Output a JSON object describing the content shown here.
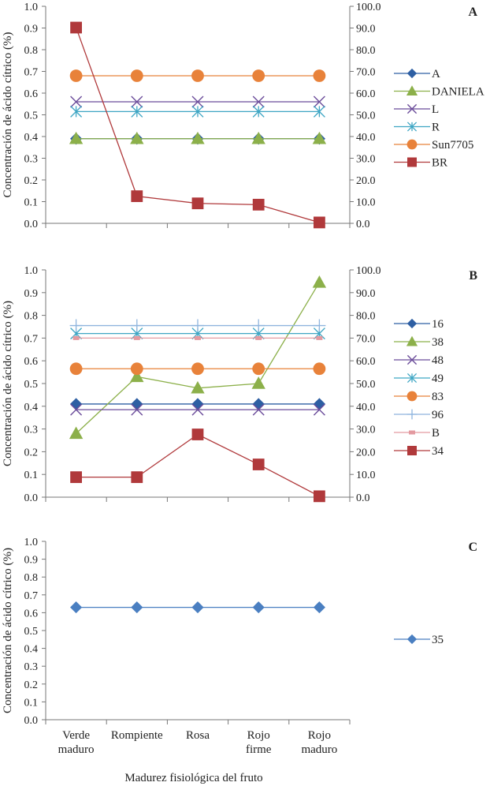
{
  "figure": {
    "xlabel": "Madurez fisiológica del fruto",
    "categories": [
      [
        "Verde",
        "maduro"
      ],
      [
        "Rompiente"
      ],
      [
        "Rosa"
      ],
      [
        "Rojo",
        "firme"
      ],
      [
        "Rojo",
        "maduro"
      ]
    ]
  },
  "chart_data": [
    {
      "type": "line",
      "panel_label": "A",
      "ylabel": "Concentración de ácido cítrico (%)",
      "categories": [
        "Verde maduro",
        "Rompiente",
        "Rosa",
        "Rojo firme",
        "Rojo maduro"
      ],
      "ylim": [
        0,
        1.0
      ],
      "y_ticks": [
        "0.0",
        "0.1",
        "0.2",
        "0.3",
        "0.4",
        "0.5",
        "0.6",
        "0.7",
        "0.8",
        "0.9",
        "1.0"
      ],
      "y2lim": [
        0,
        100
      ],
      "y2_ticks": [
        "0.0",
        "10.0",
        "20.0",
        "30.0",
        "40.0",
        "50.0",
        "60.0",
        "70.0",
        "80.0",
        "90.0",
        "100.0"
      ],
      "series": [
        {
          "name": "A",
          "axis": "left",
          "color": "#2e5fa3",
          "marker": "diamond",
          "values": [
            0.39,
            0.39,
            0.39,
            0.39,
            0.39
          ]
        },
        {
          "name": "DANIELA",
          "axis": "left",
          "color": "#8cb04a",
          "marker": "triangle",
          "values": [
            0.39,
            0.39,
            0.39,
            0.39,
            0.39
          ]
        },
        {
          "name": "L",
          "axis": "left",
          "color": "#6b4c9a",
          "marker": "x",
          "values": [
            0.56,
            0.56,
            0.56,
            0.56,
            0.56
          ]
        },
        {
          "name": "R",
          "axis": "left",
          "color": "#3fa6c4",
          "marker": "star",
          "values": [
            0.515,
            0.515,
            0.515,
            0.515,
            0.515
          ]
        },
        {
          "name": "Sun7705",
          "axis": "left",
          "color": "#e8823a",
          "marker": "circle",
          "values": [
            0.68,
            0.68,
            0.68,
            0.68,
            0.68
          ]
        },
        {
          "name": "BR",
          "axis": "right",
          "color": "#b0393b",
          "marker": "square",
          "values": [
            90.2,
            12.5,
            9.2,
            8.6,
            0.4
          ]
        }
      ]
    },
    {
      "type": "line",
      "panel_label": "B",
      "ylabel": "Concentración de ácido cítrico (%)",
      "categories": [
        "Verde maduro",
        "Rompiente",
        "Rosa",
        "Rojo firme",
        "Rojo maduro"
      ],
      "ylim": [
        0,
        1.0
      ],
      "y_ticks": [
        "0.0",
        "0.1",
        "0.2",
        "0.3",
        "0.4",
        "0.5",
        "0.6",
        "0.7",
        "0.8",
        "0.9",
        "1.0"
      ],
      "y2lim": [
        0,
        100
      ],
      "y2_ticks": [
        "0.0",
        "10.0",
        "20.0",
        "30.0",
        "40.0",
        "50.0",
        "60.0",
        "70.0",
        "80.0",
        "90.0",
        "100.0"
      ],
      "series": [
        {
          "name": "16",
          "axis": "left",
          "color": "#2e5fa3",
          "marker": "diamond",
          "values": [
            0.41,
            0.41,
            0.41,
            0.41,
            0.41
          ]
        },
        {
          "name": "38",
          "axis": "left",
          "color": "#8cb04a",
          "marker": "triangle",
          "values": [
            0.28,
            0.53,
            0.48,
            0.5,
            0.945
          ]
        },
        {
          "name": "48",
          "axis": "left",
          "color": "#6b4c9a",
          "marker": "x",
          "values": [
            0.385,
            0.385,
            0.385,
            0.385,
            0.385
          ]
        },
        {
          "name": "49",
          "axis": "left",
          "color": "#3fa6c4",
          "marker": "star",
          "values": [
            0.72,
            0.72,
            0.72,
            0.72,
            0.72
          ]
        },
        {
          "name": "83",
          "axis": "left",
          "color": "#e8823a",
          "marker": "circle",
          "values": [
            0.565,
            0.565,
            0.565,
            0.565,
            0.565
          ]
        },
        {
          "name": "96",
          "axis": "left",
          "color": "#8fb5de",
          "marker": "plus",
          "values": [
            0.755,
            0.755,
            0.755,
            0.755,
            0.755
          ]
        },
        {
          "name": "B",
          "axis": "left",
          "color": "#e39aa0",
          "marker": "dash",
          "values": [
            0.7,
            0.7,
            0.7,
            0.7,
            0.7
          ]
        },
        {
          "name": "34",
          "axis": "right",
          "color": "#b0393b",
          "marker": "square",
          "values": [
            8.8,
            8.8,
            27.6,
            14.4,
            0.4
          ]
        }
      ]
    },
    {
      "type": "line",
      "panel_label": "C",
      "ylabel": "Concentración de ácido cítrico (%)",
      "categories": [
        "Verde maduro",
        "Rompiente",
        "Rosa",
        "Rojo firme",
        "Rojo maduro"
      ],
      "ylim": [
        0,
        1.0
      ],
      "y_ticks": [
        "0.0",
        "0.1",
        "0.2",
        "0.3",
        "0.4",
        "0.5",
        "0.6",
        "0.7",
        "0.8",
        "0.9",
        "1.0"
      ],
      "series": [
        {
          "name": "35",
          "axis": "left",
          "color": "#4a7fc1",
          "marker": "diamond",
          "values": [
            0.63,
            0.63,
            0.63,
            0.63,
            0.63
          ]
        }
      ]
    }
  ]
}
